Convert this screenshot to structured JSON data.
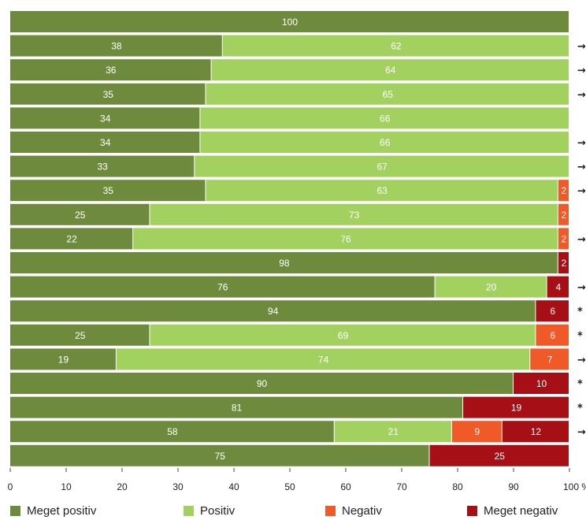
{
  "chart_data": {
    "type": "bar",
    "orientation": "horizontal",
    "stacked": true,
    "title": "",
    "xlabel": "",
    "ylabel": "",
    "xlim": [
      0,
      100
    ],
    "x_ticks": [
      "0",
      "10",
      "20",
      "30",
      "40",
      "50",
      "60",
      "70",
      "80",
      "90",
      "100 %"
    ],
    "grid": false,
    "legend_position": "bottom",
    "series": [
      {
        "name": "Meget positiv",
        "color": "#6e8b3d",
        "values": [
          100,
          38,
          36,
          35,
          34,
          34,
          33,
          35,
          25,
          22,
          98,
          76,
          94,
          25,
          19,
          90,
          81,
          58,
          75
        ]
      },
      {
        "name": "Positiv",
        "color": "#a3d15f",
        "values": [
          0,
          62,
          64,
          65,
          66,
          66,
          67,
          63,
          73,
          76,
          0,
          20,
          0,
          69,
          74,
          0,
          0,
          21,
          0
        ]
      },
      {
        "name": "Negativ",
        "color": "#f05a28",
        "values": [
          0,
          0,
          0,
          0,
          0,
          0,
          0,
          2,
          2,
          2,
          0,
          0,
          0,
          6,
          7,
          0,
          0,
          9,
          0
        ]
      },
      {
        "name": "Meget negativ",
        "color": "#a50f15",
        "values": [
          0,
          0,
          0,
          0,
          0,
          0,
          0,
          0,
          0,
          0,
          2,
          4,
          6,
          0,
          0,
          10,
          19,
          12,
          25
        ]
      }
    ],
    "row_markers": [
      "",
      "→",
      "→",
      "→",
      "",
      "→",
      "→",
      "→",
      "",
      "→",
      "",
      "→",
      "*",
      "*",
      "→",
      "*",
      "*",
      "→",
      ""
    ]
  }
}
